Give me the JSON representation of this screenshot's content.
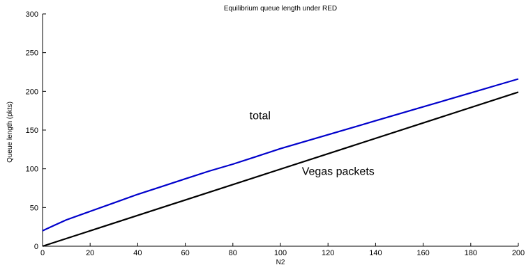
{
  "chart_data": {
    "type": "line",
    "title": "Equilibrium queue length under RED",
    "xlabel": "N2",
    "ylabel": "Queue length (pkts)",
    "xlim": [
      0,
      200
    ],
    "ylim": [
      0,
      300
    ],
    "x_ticks": [
      0,
      20,
      40,
      60,
      80,
      100,
      120,
      140,
      160,
      180,
      200
    ],
    "y_ticks": [
      0,
      50,
      100,
      150,
      200,
      250,
      300
    ],
    "grid": false,
    "legend": "none",
    "series": [
      {
        "color": "#0000cc",
        "x": [
          0,
          5,
          10,
          20,
          30,
          40,
          50,
          60,
          70,
          80,
          90,
          100,
          110,
          120,
          130,
          140,
          150,
          160,
          170,
          180,
          190,
          200
        ],
        "y": [
          20,
          27,
          34,
          45,
          56,
          67,
          77,
          87,
          97,
          106,
          116,
          126,
          135,
          144,
          153,
          162,
          171,
          180,
          189,
          198,
          207,
          216
        ]
      },
      {
        "color": "#000000",
        "x": [
          0,
          200
        ],
        "y": [
          0,
          199
        ]
      }
    ],
    "annotations": [
      {
        "text": "total",
        "x": 87,
        "y": 164
      },
      {
        "text": "Vegas packets",
        "x": 109,
        "y": 92
      }
    ]
  }
}
